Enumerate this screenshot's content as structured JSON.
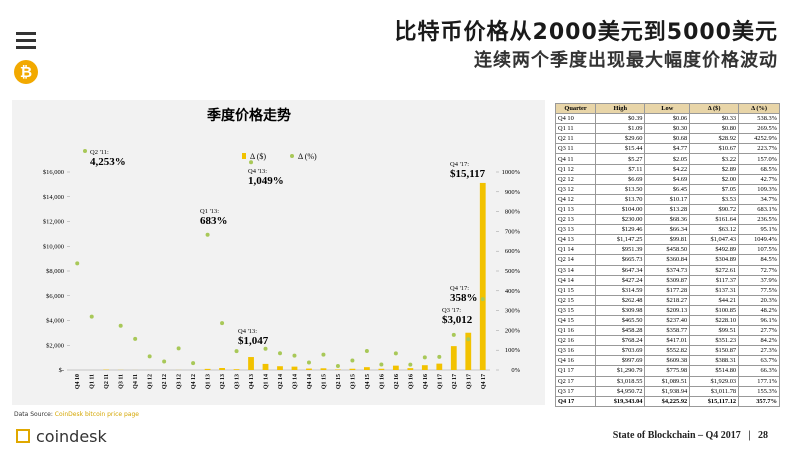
{
  "title": "比特币价格从2000美元到5000美元",
  "subtitle": "连续两个季度出现最大幅度价格波动",
  "chart_data": {
    "type": "bar",
    "title": "季度价格走势",
    "categories": [
      "Q4 10",
      "Q1 11",
      "Q2 11",
      "Q3 11",
      "Q4 11",
      "Q1 12",
      "Q2 12",
      "Q3 12",
      "Q4 12",
      "Q1 13",
      "Q2 13",
      "Q3 13",
      "Q4 13",
      "Q1 14",
      "Q2 14",
      "Q3 14",
      "Q4 14",
      "Q1 15",
      "Q2 15",
      "Q3 15",
      "Q4 15",
      "Q1 16",
      "Q2 16",
      "Q3 16",
      "Q4 16",
      "Q1 17",
      "Q2 17",
      "Q3 17",
      "Q4 17"
    ],
    "series": [
      {
        "name": "Δ ($)",
        "color": "#f2c200",
        "values": [
          0.33,
          0.8,
          28.92,
          10.67,
          3.22,
          2.89,
          2.0,
          7.05,
          3.53,
          90.72,
          161.64,
          63.12,
          1047.43,
          492.89,
          304.89,
          272.61,
          117.37,
          137.31,
          44.21,
          100.85,
          228.1,
          99.51,
          351.23,
          150.87,
          388.31,
          514.8,
          1929.03,
          3011.78,
          15117.12
        ]
      },
      {
        "name": "Δ (%)",
        "color": "#a8c858",
        "axis": "y2",
        "values": [
          538.3,
          269.5,
          null,
          223.7,
          157.0,
          68.5,
          42.7,
          109.3,
          34.7,
          683.1,
          236.5,
          95.1,
          1049.4,
          107.5,
          84.5,
          72.7,
          37.9,
          77.5,
          20.3,
          48.2,
          96.1,
          27.7,
          84.2,
          27.3,
          63.7,
          66.3,
          177.1,
          155.3,
          357.7
        ]
      }
    ],
    "ylim": [
      0,
      16000
    ],
    "yticks": [
      {
        "value": 0,
        "label": "$-"
      },
      {
        "value": 2000,
        "label": "$2,000"
      },
      {
        "value": 4000,
        "label": "$4,000"
      },
      {
        "value": 6000,
        "label": "$6,000"
      },
      {
        "value": 8000,
        "label": "$8,000"
      },
      {
        "value": 10000,
        "label": "$10,000"
      },
      {
        "value": 12000,
        "label": "$12,000"
      },
      {
        "value": 14000,
        "label": "$14,000"
      },
      {
        "value": 16000,
        "label": "$16,000"
      }
    ],
    "y2lim": [
      0,
      1000
    ],
    "y2ticks": [
      {
        "value": 0,
        "label": "0%"
      },
      {
        "value": 100,
        "label": "100%"
      },
      {
        "value": 200,
        "label": "200%"
      },
      {
        "value": 300,
        "label": "300%"
      },
      {
        "value": 400,
        "label": "400%"
      },
      {
        "value": 500,
        "label": "500%"
      },
      {
        "value": 600,
        "label": "600%"
      },
      {
        "value": 700,
        "label": "700%"
      },
      {
        "value": 800,
        "label": "800%"
      },
      {
        "value": 900,
        "label": "900%"
      },
      {
        "value": 1000,
        "label": "1000%"
      }
    ],
    "annotations": [
      {
        "label": "Q2 '11:",
        "value": "4,253%"
      },
      {
        "label": "Q1 '13:",
        "value": "683%"
      },
      {
        "label": "Q4 '13:",
        "value": "1,049%"
      },
      {
        "label": "Q4 '13:",
        "value": "$1,047"
      },
      {
        "label": "Q3 '17:",
        "value": "$3,012"
      },
      {
        "label": "Q4 '17:",
        "value": "358%"
      },
      {
        "label": "Q4 '17:",
        "value": "$15,117"
      }
    ]
  },
  "table": {
    "columns": [
      "Quarter",
      "High",
      "Low",
      "Δ ($)",
      "Δ (%)"
    ],
    "rows": [
      [
        "Q4 10",
        "$0.39",
        "$0.06",
        "$0.33",
        "538.3%"
      ],
      [
        "Q1 11",
        "$1.09",
        "$0.30",
        "$0.80",
        "269.5%"
      ],
      [
        "Q2 11",
        "$29.60",
        "$0.68",
        "$28.92",
        "4252.9%"
      ],
      [
        "Q3 11",
        "$15.44",
        "$4.77",
        "$10.67",
        "223.7%"
      ],
      [
        "Q4 11",
        "$5.27",
        "$2.05",
        "$3.22",
        "157.0%"
      ],
      [
        "Q1 12",
        "$7.11",
        "$4.22",
        "$2.89",
        "68.5%"
      ],
      [
        "Q2 12",
        "$6.69",
        "$4.69",
        "$2.00",
        "42.7%"
      ],
      [
        "Q3 12",
        "$13.50",
        "$6.45",
        "$7.05",
        "109.3%"
      ],
      [
        "Q4 12",
        "$13.70",
        "$10.17",
        "$3.53",
        "34.7%"
      ],
      [
        "Q1 13",
        "$104.00",
        "$13.28",
        "$90.72",
        "683.1%"
      ],
      [
        "Q2 13",
        "$230.00",
        "$68.36",
        "$161.64",
        "236.5%"
      ],
      [
        "Q3 13",
        "$129.46",
        "$66.34",
        "$63.12",
        "95.1%"
      ],
      [
        "Q4 13",
        "$1,147.25",
        "$99.81",
        "$1,047.43",
        "1049.4%"
      ],
      [
        "Q1 14",
        "$951.39",
        "$458.50",
        "$492.89",
        "107.5%"
      ],
      [
        "Q2 14",
        "$665.73",
        "$360.84",
        "$304.89",
        "84.5%"
      ],
      [
        "Q3 14",
        "$647.34",
        "$374.73",
        "$272.61",
        "72.7%"
      ],
      [
        "Q4 14",
        "$427.24",
        "$309.87",
        "$117.37",
        "37.9%"
      ],
      [
        "Q1 15",
        "$314.59",
        "$177.28",
        "$137.31",
        "77.5%"
      ],
      [
        "Q2 15",
        "$262.48",
        "$218.27",
        "$44.21",
        "20.3%"
      ],
      [
        "Q3 15",
        "$309.98",
        "$209.13",
        "$100.85",
        "48.2%"
      ],
      [
        "Q4 15",
        "$465.50",
        "$237.40",
        "$228.10",
        "96.1%"
      ],
      [
        "Q1 16",
        "$458.28",
        "$358.77",
        "$99.51",
        "27.7%"
      ],
      [
        "Q2 16",
        "$768.24",
        "$417.01",
        "$351.23",
        "84.2%"
      ],
      [
        "Q3 16",
        "$703.69",
        "$552.82",
        "$150.87",
        "27.3%"
      ],
      [
        "Q4 16",
        "$997.69",
        "$609.38",
        "$388.31",
        "63.7%"
      ],
      [
        "Q1 17",
        "$1,290.79",
        "$775.98",
        "$514.80",
        "66.3%"
      ],
      [
        "Q2 17",
        "$3,018.55",
        "$1,089.51",
        "$1,929.03",
        "177.1%"
      ],
      [
        "Q3 17",
        "$4,950.72",
        "$1,938.94",
        "$3,011.78",
        "155.3%"
      ],
      [
        "Q4 17",
        "$19,343.04",
        "$4,225.92",
        "$15,117.12",
        "357.7%"
      ]
    ]
  },
  "source": {
    "label": "Data Source:",
    "link": "CoinDesk bitcoin price page"
  },
  "logo": "coindesk",
  "footer": {
    "text": "State of Blockchain – Q4 2017",
    "page": "28"
  }
}
